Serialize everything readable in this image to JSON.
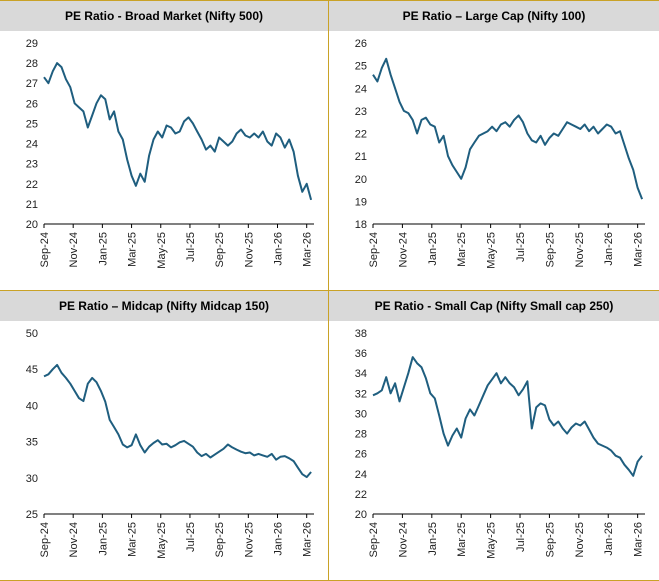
{
  "page": {
    "accent_color": "#c9a227",
    "header_bg": "#d9d9d9",
    "series_color": "#1f5e7f"
  },
  "chart_data": [
    {
      "type": "line",
      "title": "PE Ratio - Broad Market (Nifty 500)",
      "xlabel": "",
      "ylabel": "",
      "x_ticks": [
        "Sep-24",
        "Nov-24",
        "Jan-25",
        "Mar-25",
        "May-25",
        "Jul-25",
        "Sep-25",
        "Nov-25",
        "Jan-26",
        "Mar-26"
      ],
      "y_ticks": [
        20,
        21,
        22,
        23,
        24,
        25,
        26,
        27,
        28,
        29
      ],
      "ylim": [
        20,
        29
      ],
      "xlim": [
        0,
        18.5
      ],
      "grid": false,
      "series": [
        {
          "x": [
            0,
            0.3,
            0.6,
            0.9,
            1.2,
            1.5,
            1.8,
            2.1,
            2.4,
            2.7,
            3.0,
            3.3,
            3.6,
            3.9,
            4.2,
            4.5,
            4.8,
            5.1,
            5.4,
            5.7,
            6.0,
            6.3,
            6.6,
            6.9,
            7.2,
            7.5,
            7.8,
            8.1,
            8.4,
            8.7,
            9.0,
            9.3,
            9.6,
            9.9,
            10.2,
            10.5,
            10.8,
            11.1,
            11.4,
            11.7,
            12.0,
            12.3,
            12.6,
            12.9,
            13.2,
            13.5,
            13.8,
            14.1,
            14.4,
            14.7,
            15.0,
            15.3,
            15.6,
            15.9,
            16.2,
            16.5,
            16.8,
            17.1,
            17.4,
            17.7,
            18.0,
            18.3
          ],
          "y": [
            27.3,
            27.0,
            27.6,
            28.0,
            27.8,
            27.2,
            26.8,
            26.0,
            25.8,
            25.6,
            24.8,
            25.4,
            26.0,
            26.4,
            26.2,
            25.2,
            25.6,
            24.6,
            24.2,
            23.2,
            22.4,
            21.9,
            22.5,
            22.1,
            23.4,
            24.2,
            24.6,
            24.3,
            24.9,
            24.8,
            24.5,
            24.6,
            25.1,
            25.3,
            25.0,
            24.6,
            24.2,
            23.7,
            23.9,
            23.6,
            24.3,
            24.1,
            23.9,
            24.1,
            24.5,
            24.7,
            24.4,
            24.3,
            24.5,
            24.3,
            24.6,
            24.1,
            23.9,
            24.5,
            24.3,
            23.8,
            24.2,
            23.6,
            22.4,
            21.6,
            22.0,
            21.2
          ]
        }
      ]
    },
    {
      "type": "line",
      "title": "PE Ratio – Large Cap (Nifty 100)",
      "xlabel": "",
      "ylabel": "",
      "x_ticks": [
        "Sep-24",
        "Nov-24",
        "Jan-25",
        "Mar-25",
        "May-25",
        "Jul-25",
        "Sep-25",
        "Nov-25",
        "Jan-26",
        "Mar-26"
      ],
      "y_ticks": [
        18,
        19,
        20,
        21,
        22,
        23,
        24,
        25,
        26
      ],
      "ylim": [
        18,
        26
      ],
      "xlim": [
        0,
        18.5
      ],
      "grid": false,
      "series": [
        {
          "x": [
            0,
            0.3,
            0.6,
            0.9,
            1.2,
            1.5,
            1.8,
            2.1,
            2.4,
            2.7,
            3.0,
            3.3,
            3.6,
            3.9,
            4.2,
            4.5,
            4.8,
            5.1,
            5.4,
            5.7,
            6.0,
            6.3,
            6.6,
            6.9,
            7.2,
            7.5,
            7.8,
            8.1,
            8.4,
            8.7,
            9.0,
            9.3,
            9.6,
            9.9,
            10.2,
            10.5,
            10.8,
            11.1,
            11.4,
            11.7,
            12.0,
            12.3,
            12.6,
            12.9,
            13.2,
            13.5,
            13.8,
            14.1,
            14.4,
            14.7,
            15.0,
            15.3,
            15.6,
            15.9,
            16.2,
            16.5,
            16.8,
            17.1,
            17.4,
            17.7,
            18.0,
            18.3
          ],
          "y": [
            24.6,
            24.3,
            24.9,
            25.3,
            24.6,
            24.0,
            23.4,
            23.0,
            22.9,
            22.6,
            22.0,
            22.6,
            22.7,
            22.4,
            22.3,
            21.6,
            21.9,
            21.0,
            20.6,
            20.3,
            20.0,
            20.5,
            21.3,
            21.6,
            21.9,
            22.0,
            22.1,
            22.3,
            22.1,
            22.4,
            22.5,
            22.3,
            22.6,
            22.8,
            22.5,
            22.0,
            21.7,
            21.6,
            21.9,
            21.5,
            21.8,
            22.0,
            21.9,
            22.2,
            22.5,
            22.4,
            22.3,
            22.2,
            22.4,
            22.1,
            22.3,
            22.0,
            22.2,
            22.4,
            22.3,
            22.0,
            22.1,
            21.5,
            20.9,
            20.4,
            19.6,
            19.1
          ]
        }
      ]
    },
    {
      "type": "line",
      "title": "PE Ratio – Midcap (Nifty Midcap 150)",
      "xlabel": "",
      "ylabel": "",
      "x_ticks": [
        "Sep-24",
        "Nov-24",
        "Jan-25",
        "Mar-25",
        "May-25",
        "Jul-25",
        "Sep-25",
        "Nov-25",
        "Jan-26",
        "Mar-26"
      ],
      "y_ticks": [
        25,
        30,
        35,
        40,
        45,
        50
      ],
      "ylim": [
        25,
        50
      ],
      "xlim": [
        0,
        18.5
      ],
      "grid": false,
      "series": [
        {
          "x": [
            0,
            0.3,
            0.6,
            0.9,
            1.2,
            1.5,
            1.8,
            2.1,
            2.4,
            2.7,
            3.0,
            3.3,
            3.6,
            3.9,
            4.2,
            4.5,
            4.8,
            5.1,
            5.4,
            5.7,
            6.0,
            6.3,
            6.6,
            6.9,
            7.2,
            7.5,
            7.8,
            8.1,
            8.4,
            8.7,
            9.0,
            9.3,
            9.6,
            9.9,
            10.2,
            10.5,
            10.8,
            11.1,
            11.4,
            11.7,
            12.0,
            12.3,
            12.6,
            12.9,
            13.2,
            13.5,
            13.8,
            14.1,
            14.4,
            14.7,
            15.0,
            15.3,
            15.6,
            15.9,
            16.2,
            16.5,
            16.8,
            17.1,
            17.4,
            17.7,
            18.0,
            18.3
          ],
          "y": [
            44.0,
            44.3,
            45.0,
            45.6,
            44.5,
            43.8,
            43.0,
            42.0,
            41.0,
            40.6,
            43.0,
            43.8,
            43.2,
            42.0,
            40.5,
            38.0,
            37.0,
            36.0,
            34.6,
            34.2,
            34.5,
            36.0,
            34.5,
            33.5,
            34.3,
            34.8,
            35.2,
            34.6,
            34.7,
            34.2,
            34.5,
            34.9,
            35.1,
            34.7,
            34.3,
            33.5,
            33.0,
            33.3,
            32.8,
            33.2,
            33.6,
            34.0,
            34.6,
            34.2,
            33.9,
            33.6,
            33.4,
            33.5,
            33.1,
            33.3,
            33.1,
            32.9,
            33.3,
            32.5,
            32.9,
            33.0,
            32.7,
            32.3,
            31.4,
            30.5,
            30.1,
            30.8
          ]
        }
      ]
    },
    {
      "type": "line",
      "title": "PE Ratio - Small Cap (Nifty Small cap 250)",
      "xlabel": "",
      "ylabel": "",
      "x_ticks": [
        "Sep-24",
        "Nov-24",
        "Jan-25",
        "Mar-25",
        "May-25",
        "Jul-25",
        "Sep-25",
        "Nov-25",
        "Jan-26",
        "Mar-26"
      ],
      "y_ticks": [
        20,
        22,
        24,
        26,
        28,
        30,
        32,
        34,
        36,
        38
      ],
      "ylim": [
        20,
        38
      ],
      "xlim": [
        0,
        18.5
      ],
      "grid": false,
      "series": [
        {
          "x": [
            0,
            0.3,
            0.6,
            0.9,
            1.2,
            1.5,
            1.8,
            2.1,
            2.4,
            2.7,
            3.0,
            3.3,
            3.6,
            3.9,
            4.2,
            4.5,
            4.8,
            5.1,
            5.4,
            5.7,
            6.0,
            6.3,
            6.6,
            6.9,
            7.2,
            7.5,
            7.8,
            8.1,
            8.4,
            8.7,
            9.0,
            9.3,
            9.6,
            9.9,
            10.2,
            10.5,
            10.8,
            11.1,
            11.4,
            11.7,
            12.0,
            12.3,
            12.6,
            12.9,
            13.2,
            13.5,
            13.8,
            14.1,
            14.4,
            14.7,
            15.0,
            15.3,
            15.6,
            15.9,
            16.2,
            16.5,
            16.8,
            17.1,
            17.4,
            17.7,
            18.0,
            18.3
          ],
          "y": [
            31.8,
            32.0,
            32.3,
            33.6,
            32.0,
            33.0,
            31.2,
            32.6,
            34.0,
            35.6,
            35.0,
            34.6,
            33.5,
            32.0,
            31.5,
            29.8,
            28.0,
            26.8,
            27.8,
            28.5,
            27.6,
            29.5,
            30.4,
            29.8,
            30.8,
            31.8,
            32.8,
            33.4,
            34.0,
            33.0,
            33.6,
            33.0,
            32.6,
            31.8,
            32.4,
            33.2,
            28.5,
            30.6,
            31.0,
            30.8,
            29.4,
            28.8,
            29.2,
            28.5,
            28.0,
            28.6,
            29.0,
            28.8,
            29.2,
            28.4,
            27.6,
            27.0,
            26.8,
            26.6,
            26.3,
            25.8,
            25.6,
            24.9,
            24.4,
            23.8,
            25.2,
            25.8
          ]
        }
      ]
    }
  ]
}
